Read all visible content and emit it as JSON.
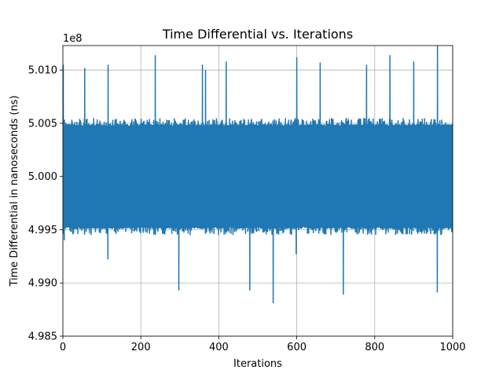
{
  "chart_data": {
    "type": "line",
    "title": "Time Differential vs. Iterations",
    "xlabel": "Iterations",
    "ylabel": "Time Differential in nanoseconds (ns)",
    "offset_label": "1e8",
    "xlim": [
      0,
      1000
    ],
    "ylim": [
      4.985,
      5.0123
    ],
    "y_scale_factor": 100000000,
    "x_ticks": [
      0,
      200,
      400,
      600,
      800,
      1000
    ],
    "x_tick_labels": [
      "0",
      "200",
      "400",
      "600",
      "800",
      "1000"
    ],
    "y_ticks": [
      4.985,
      4.99,
      4.995,
      5.0,
      5.005,
      5.01
    ],
    "y_tick_labels": [
      "4.985",
      "4.990",
      "4.995",
      "5.000",
      "5.005",
      "5.010"
    ],
    "grid": true,
    "series": [
      {
        "color": "#1f77b4",
        "band": {
          "upper_typical": 5.0047,
          "lower_typical": 4.9953,
          "upper_outlier_max": 5.0055,
          "lower_outlier_min": 4.9945
        },
        "spikes": [
          {
            "x": 1,
            "y": 5.0105
          },
          {
            "x": 56,
            "y": 5.0102
          },
          {
            "x": 116,
            "y": 5.0105
          },
          {
            "x": 237,
            "y": 5.0114
          },
          {
            "x": 358,
            "y": 5.0105
          },
          {
            "x": 366,
            "y": 5.01
          },
          {
            "x": 419,
            "y": 5.0108
          },
          {
            "x": 600,
            "y": 5.0112
          },
          {
            "x": 660,
            "y": 5.0107
          },
          {
            "x": 779,
            "y": 5.0105
          },
          {
            "x": 839,
            "y": 5.0114
          },
          {
            "x": 900,
            "y": 5.0108
          },
          {
            "x": 961,
            "y": 5.0125
          },
          {
            "x": 3,
            "y": 4.994
          },
          {
            "x": 115,
            "y": 4.9922
          },
          {
            "x": 297,
            "y": 4.9893
          },
          {
            "x": 479,
            "y": 4.9893
          },
          {
            "x": 539,
            "y": 4.9881
          },
          {
            "x": 598,
            "y": 4.9927
          },
          {
            "x": 719,
            "y": 4.9889
          },
          {
            "x": 960,
            "y": 4.9891
          }
        ]
      }
    ]
  }
}
